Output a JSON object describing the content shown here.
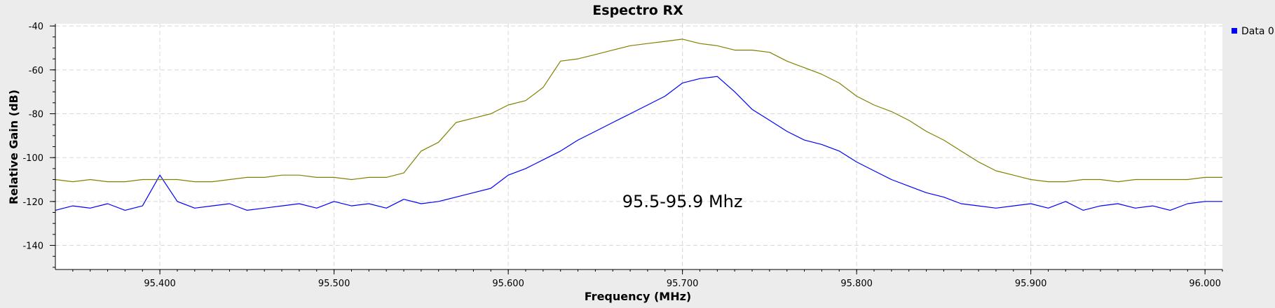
{
  "chart_data": {
    "type": "line",
    "title": "Espectro RX",
    "xlabel": "Frequency (MHz)",
    "ylabel": "Relative Gain (dB)",
    "xlim": [
      95.34,
      96.01
    ],
    "ylim": [
      -151,
      -39
    ],
    "xticks": [
      95.4,
      95.5,
      95.6,
      95.7,
      95.8,
      95.9,
      96.0
    ],
    "xtick_labels": [
      "95.400",
      "95.500",
      "95.600",
      "95.700",
      "95.800",
      "95.900",
      "96.000"
    ],
    "yticks": [
      -40,
      -60,
      -80,
      -100,
      -120,
      -140
    ],
    "ytick_labels": [
      "-40",
      "-60",
      "-80",
      "-100",
      "-120",
      "-140"
    ],
    "grid": true,
    "legend": {
      "position": "top-right",
      "entries": [
        "Data 0"
      ]
    },
    "annotation": {
      "text": "95.5-95.9 Mhz",
      "x": 95.7,
      "y": -120
    },
    "series": [
      {
        "name": "Data 0",
        "color": "#0000ff",
        "x": [
          95.34,
          95.35,
          95.36,
          95.37,
          95.38,
          95.39,
          95.4,
          95.41,
          95.42,
          95.43,
          95.44,
          95.45,
          95.46,
          95.47,
          95.48,
          95.49,
          95.5,
          95.51,
          95.52,
          95.53,
          95.54,
          95.55,
          95.56,
          95.57,
          95.58,
          95.59,
          95.6,
          95.61,
          95.62,
          95.63,
          95.64,
          95.65,
          95.66,
          95.67,
          95.68,
          95.69,
          95.7,
          95.71,
          95.72,
          95.73,
          95.74,
          95.75,
          95.76,
          95.77,
          95.78,
          95.79,
          95.8,
          95.81,
          95.82,
          95.83,
          95.84,
          95.85,
          95.86,
          95.87,
          95.88,
          95.89,
          95.9,
          95.91,
          95.92,
          95.93,
          95.94,
          95.95,
          95.96,
          95.97,
          95.98,
          95.99,
          96.0,
          96.01
        ],
        "y": [
          -124,
          -122,
          -123,
          -121,
          -124,
          -122,
          -108,
          -120,
          -123,
          -122,
          -121,
          -124,
          -123,
          -122,
          -121,
          -123,
          -120,
          -122,
          -121,
          -123,
          -119,
          -121,
          -120,
          -118,
          -116,
          -114,
          -108,
          -105,
          -101,
          -97,
          -92,
          -88,
          -84,
          -80,
          -76,
          -72,
          -66,
          -64,
          -63,
          -70,
          -78,
          -83,
          -88,
          -92,
          -94,
          -97,
          -102,
          -106,
          -110,
          -113,
          -116,
          -118,
          -121,
          -122,
          -123,
          -122,
          -121,
          -123,
          -120,
          -124,
          -122,
          -121,
          -123,
          -122,
          -124,
          -121,
          -120,
          -120
        ]
      },
      {
        "color": "#808000",
        "x": [
          95.34,
          95.35,
          95.36,
          95.37,
          95.38,
          95.39,
          95.4,
          95.41,
          95.42,
          95.43,
          95.44,
          95.45,
          95.46,
          95.47,
          95.48,
          95.49,
          95.5,
          95.51,
          95.52,
          95.53,
          95.54,
          95.55,
          95.56,
          95.57,
          95.58,
          95.59,
          95.6,
          95.61,
          95.62,
          95.63,
          95.64,
          95.65,
          95.66,
          95.67,
          95.68,
          95.69,
          95.7,
          95.71,
          95.72,
          95.73,
          95.74,
          95.75,
          95.76,
          95.77,
          95.78,
          95.79,
          95.8,
          95.81,
          95.82,
          95.83,
          95.84,
          95.85,
          95.86,
          95.87,
          95.88,
          95.89,
          95.9,
          95.91,
          95.92,
          95.93,
          95.94,
          95.95,
          95.96,
          95.97,
          95.98,
          95.99,
          96.0,
          96.01
        ],
        "y": [
          -110,
          -111,
          -110,
          -111,
          -111,
          -110,
          -110,
          -110,
          -111,
          -111,
          -110,
          -109,
          -109,
          -108,
          -108,
          -109,
          -109,
          -110,
          -109,
          -109,
          -107,
          -97,
          -93,
          -84,
          -82,
          -80,
          -76,
          -74,
          -68,
          -56,
          -55,
          -53,
          -51,
          -49,
          -48,
          -47,
          -46,
          -48,
          -49,
          -51,
          -51,
          -52,
          -56,
          -59,
          -62,
          -66,
          -72,
          -76,
          -79,
          -83,
          -88,
          -92,
          -97,
          -102,
          -106,
          -108,
          -110,
          -111,
          -111,
          -110,
          -110,
          -111,
          -110,
          -110,
          -110,
          -110,
          -109,
          -109
        ]
      }
    ]
  }
}
